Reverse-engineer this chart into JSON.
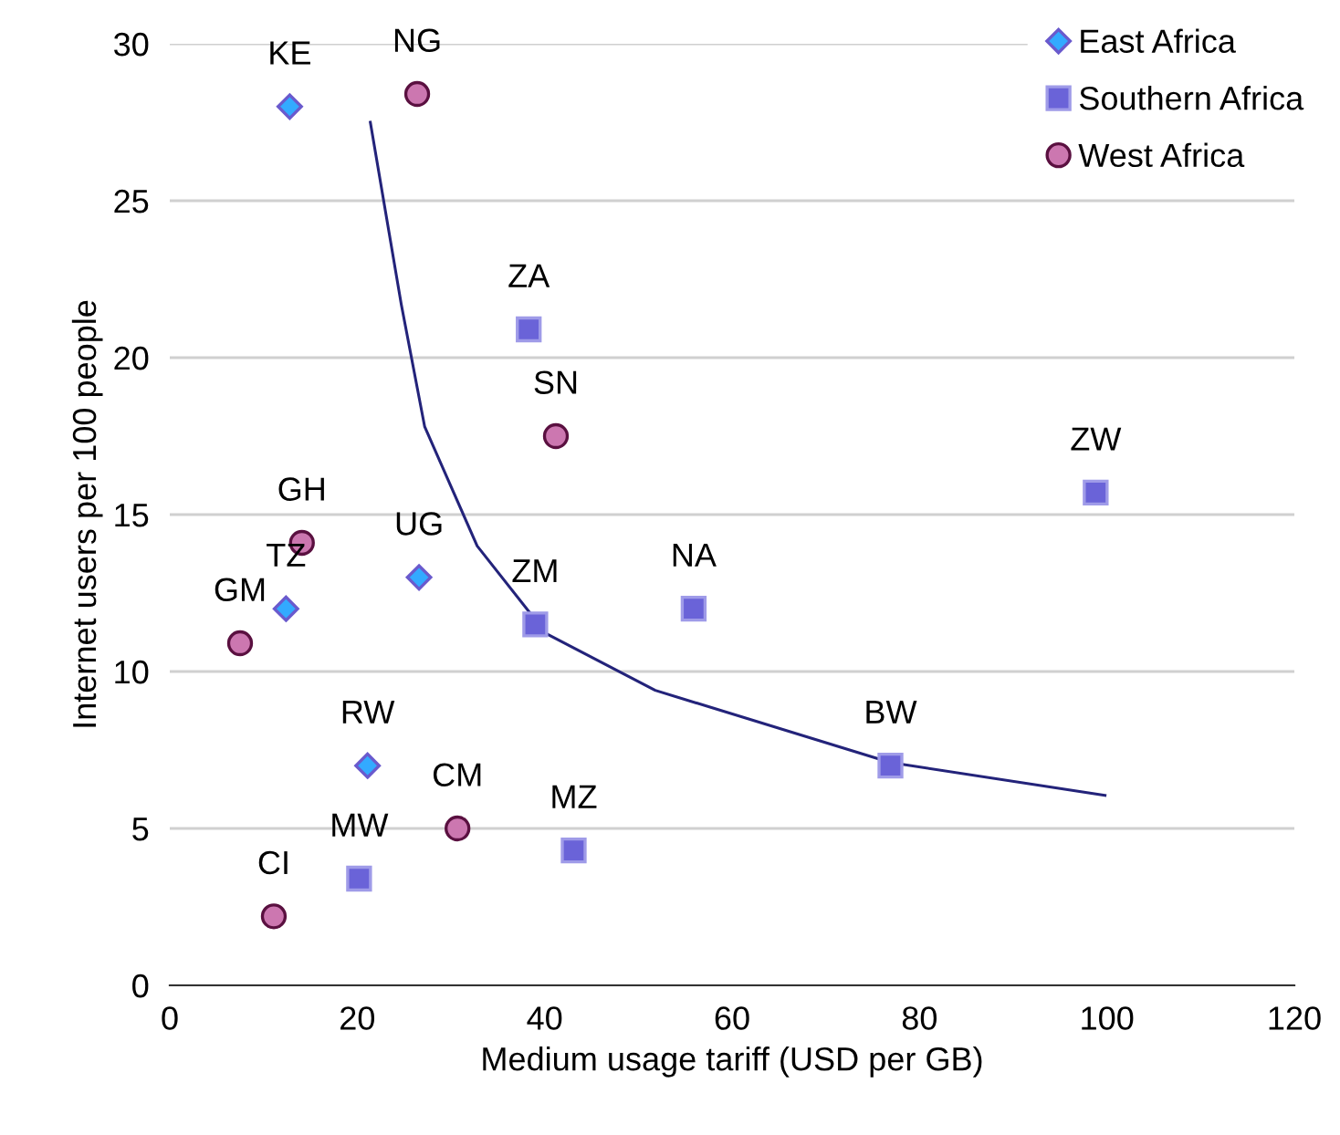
{
  "chart_data": {
    "type": "scatter",
    "xlabel": "Medium usage tariff (USD per GB)",
    "ylabel": "Internet users per 100 people",
    "xlim": [
      0,
      120
    ],
    "xticks": [
      0,
      20,
      40,
      60,
      80,
      100,
      120
    ],
    "ylim": [
      0,
      30
    ],
    "yticks": [
      0,
      5,
      10,
      15,
      20,
      25,
      30
    ],
    "grid": "y",
    "legend": "top right",
    "series": [
      {
        "name": "East Africa",
        "marker": "diamond",
        "color": "#33aaff",
        "x": [
          12.8,
          12.4,
          26.6,
          21.1
        ],
        "values": [
          28.0,
          12.0,
          13.0,
          7.0
        ]
      },
      {
        "name": "Southern Africa",
        "marker": "square",
        "color": "#6a63d8",
        "x": [
          38.3,
          39.0,
          55.9,
          98.8,
          76.9,
          43.1,
          20.2
        ],
        "values": [
          20.9,
          11.5,
          12.0,
          15.7,
          7.0,
          4.3,
          3.4
        ]
      },
      {
        "name": "West Africa",
        "marker": "circle",
        "color": "#cc77b0",
        "x": [
          26.4,
          41.2,
          14.1,
          7.5,
          30.7,
          11.1
        ],
        "values": [
          28.4,
          17.5,
          14.1,
          10.9,
          5.0,
          2.2
        ]
      },
      {
        "type": "line",
        "marker": "none",
        "color": "#23237a",
        "x": [
          21.4,
          24.7,
          27.2,
          32.8,
          40.2,
          51.8,
          76.9,
          99.8
        ],
        "values": [
          27.5,
          21.7,
          17.8,
          14.0,
          11.2,
          9.4,
          7.1,
          6.05
        ]
      }
    ],
    "annotations": [
      {
        "text": "KE",
        "x": 12.8,
        "y": 28.0
      },
      {
        "text": "TZ",
        "x": 12.4,
        "y": 12.0
      },
      {
        "text": "UG",
        "x": 26.6,
        "y": 13.0
      },
      {
        "text": "RW",
        "x": 21.1,
        "y": 7.0
      },
      {
        "text": "ZA",
        "x": 38.3,
        "y": 20.9
      },
      {
        "text": "ZM",
        "x": 39.0,
        "y": 11.5
      },
      {
        "text": "NA",
        "x": 55.9,
        "y": 12.0
      },
      {
        "text": "ZW",
        "x": 98.8,
        "y": 15.7
      },
      {
        "text": "BW",
        "x": 76.9,
        "y": 7.0
      },
      {
        "text": "MZ",
        "x": 43.1,
        "y": 4.3
      },
      {
        "text": "MW",
        "x": 20.2,
        "y": 3.4
      },
      {
        "text": "NG",
        "x": 26.4,
        "y": 28.4
      },
      {
        "text": "SN",
        "x": 41.2,
        "y": 17.5
      },
      {
        "text": "GH",
        "x": 14.1,
        "y": 14.1
      },
      {
        "text": "GM",
        "x": 7.5,
        "y": 10.9
      },
      {
        "text": "CM",
        "x": 30.7,
        "y": 5.0
      },
      {
        "text": "CI",
        "x": 11.1,
        "y": 2.2
      }
    ]
  }
}
